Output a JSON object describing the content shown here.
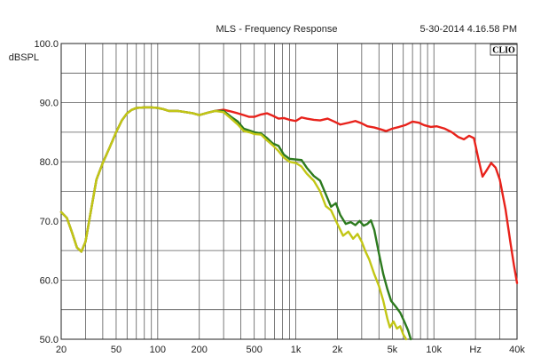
{
  "header": {
    "title": "MLS - Frequency Response",
    "timestamp": "5-30-2014 4.16.58 PM",
    "badge": "CLIO"
  },
  "chart_data": {
    "type": "line",
    "title": "MLS - Frequency Response",
    "ylabel": "dBSPL",
    "xlabel": "Hz",
    "xscale": "log",
    "xlim": [
      20,
      40000
    ],
    "ylim": [
      50,
      100
    ],
    "grid": true,
    "legend": "none",
    "x_tick_labels": [
      {
        "value": 20,
        "label": "20"
      },
      {
        "value": 50,
        "label": "50"
      },
      {
        "value": 100,
        "label": "100"
      },
      {
        "value": 200,
        "label": "200"
      },
      {
        "value": 500,
        "label": "500"
      },
      {
        "value": 1000,
        "label": "1k"
      },
      {
        "value": 2000,
        "label": "2k"
      },
      {
        "value": 5000,
        "label": "5k"
      },
      {
        "value": 10000,
        "label": "10k"
      },
      {
        "value": 20000,
        "label": "Hz"
      },
      {
        "value": 40000,
        "label": "40k"
      }
    ],
    "y_tick_labels": [
      {
        "value": 100,
        "label": "100.0"
      },
      {
        "value": 90,
        "label": "90.0"
      },
      {
        "value": 80,
        "label": "80.0"
      },
      {
        "value": 70,
        "label": "70.0"
      },
      {
        "value": 60,
        "label": "60.0"
      },
      {
        "value": 50,
        "label": "50.0"
      }
    ],
    "series": [
      {
        "color": "#e8221b",
        "points": [
          [
            20,
            71.5
          ],
          [
            22,
            70.5
          ],
          [
            24,
            68
          ],
          [
            26,
            65.5
          ],
          [
            28,
            64.8
          ],
          [
            30,
            66.5
          ],
          [
            33,
            72
          ],
          [
            36,
            77
          ],
          [
            40,
            79.8
          ],
          [
            45,
            82.5
          ],
          [
            50,
            85
          ],
          [
            55,
            87
          ],
          [
            60,
            88.2
          ],
          [
            65,
            88.8
          ],
          [
            70,
            89.1
          ],
          [
            80,
            89.2
          ],
          [
            90,
            89.2
          ],
          [
            100,
            89.1
          ],
          [
            110,
            88.9
          ],
          [
            120,
            88.6
          ],
          [
            140,
            88.6
          ],
          [
            160,
            88.4
          ],
          [
            180,
            88.2
          ],
          [
            200,
            87.9
          ],
          [
            230,
            88.3
          ],
          [
            260,
            88.6
          ],
          [
            300,
            88.8
          ],
          [
            340,
            88.5
          ],
          [
            380,
            88.2
          ],
          [
            420,
            87.9
          ],
          [
            460,
            87.6
          ],
          [
            500,
            87.6
          ],
          [
            560,
            88.0
          ],
          [
            620,
            88.2
          ],
          [
            680,
            87.8
          ],
          [
            750,
            87.3
          ],
          [
            820,
            87.4
          ],
          [
            900,
            87.1
          ],
          [
            1000,
            86.9
          ],
          [
            1100,
            87.5
          ],
          [
            1200,
            87.3
          ],
          [
            1350,
            87.1
          ],
          [
            1500,
            87.0
          ],
          [
            1700,
            87.3
          ],
          [
            1900,
            86.8
          ],
          [
            2100,
            86.3
          ],
          [
            2400,
            86.6
          ],
          [
            2700,
            86.9
          ],
          [
            3000,
            86.5
          ],
          [
            3300,
            86.0
          ],
          [
            3700,
            85.8
          ],
          [
            4100,
            85.5
          ],
          [
            4500,
            85.2
          ],
          [
            5000,
            85.6
          ],
          [
            5600,
            85.9
          ],
          [
            6200,
            86.2
          ],
          [
            7000,
            86.8
          ],
          [
            7800,
            86.6
          ],
          [
            8500,
            86.2
          ],
          [
            9500,
            85.9
          ],
          [
            10500,
            86.0
          ],
          [
            12000,
            85.6
          ],
          [
            13500,
            85.0
          ],
          [
            15000,
            84.2
          ],
          [
            16500,
            83.8
          ],
          [
            18000,
            84.4
          ],
          [
            19500,
            84.0
          ],
          [
            21000,
            80.5
          ],
          [
            22500,
            77.5
          ],
          [
            24000,
            78.5
          ],
          [
            26000,
            79.8
          ],
          [
            28000,
            79.0
          ],
          [
            30000,
            77.0
          ],
          [
            33000,
            72.0
          ],
          [
            36000,
            66.0
          ],
          [
            38000,
            62.5
          ],
          [
            40000,
            59.5
          ]
        ]
      },
      {
        "color": "#2c7a1e",
        "points": [
          [
            20,
            71.5
          ],
          [
            22,
            70.5
          ],
          [
            24,
            68
          ],
          [
            26,
            65.5
          ],
          [
            28,
            64.8
          ],
          [
            30,
            66.5
          ],
          [
            33,
            72
          ],
          [
            36,
            77
          ],
          [
            40,
            79.8
          ],
          [
            45,
            82.5
          ],
          [
            50,
            85
          ],
          [
            55,
            87
          ],
          [
            60,
            88.2
          ],
          [
            65,
            88.8
          ],
          [
            70,
            89.1
          ],
          [
            80,
            89.2
          ],
          [
            90,
            89.2
          ],
          [
            100,
            89.1
          ],
          [
            110,
            88.9
          ],
          [
            120,
            88.6
          ],
          [
            140,
            88.6
          ],
          [
            160,
            88.4
          ],
          [
            180,
            88.2
          ],
          [
            200,
            87.9
          ],
          [
            230,
            88.3
          ],
          [
            260,
            88.6
          ],
          [
            300,
            88.6
          ],
          [
            340,
            87.6
          ],
          [
            380,
            86.8
          ],
          [
            420,
            85.6
          ],
          [
            460,
            85.3
          ],
          [
            500,
            85.0
          ],
          [
            560,
            84.8
          ],
          [
            620,
            84.0
          ],
          [
            680,
            83.1
          ],
          [
            750,
            82.7
          ],
          [
            820,
            81.2
          ],
          [
            900,
            80.5
          ],
          [
            1000,
            80.4
          ],
          [
            1100,
            80.3
          ],
          [
            1200,
            79.0
          ],
          [
            1350,
            77.6
          ],
          [
            1500,
            76.8
          ],
          [
            1650,
            74.5
          ],
          [
            1800,
            72.4
          ],
          [
            1950,
            73.0
          ],
          [
            2100,
            71.0
          ],
          [
            2300,
            69.5
          ],
          [
            2500,
            69.8
          ],
          [
            2700,
            69.3
          ],
          [
            2900,
            70.0
          ],
          [
            3100,
            69.2
          ],
          [
            3300,
            69.5
          ],
          [
            3500,
            70.1
          ],
          [
            3700,
            68.5
          ],
          [
            4000,
            64.5
          ],
          [
            4300,
            61.0
          ],
          [
            4600,
            58.5
          ],
          [
            4900,
            56.5
          ],
          [
            5300,
            55.5
          ],
          [
            5700,
            54.5
          ],
          [
            6100,
            53.0
          ],
          [
            6500,
            51.5
          ],
          [
            6800,
            50.0
          ]
        ]
      },
      {
        "color": "#c2c615",
        "points": [
          [
            20,
            71.5
          ],
          [
            22,
            70.5
          ],
          [
            24,
            68
          ],
          [
            26,
            65.5
          ],
          [
            28,
            64.8
          ],
          [
            30,
            66.5
          ],
          [
            33,
            72
          ],
          [
            36,
            77
          ],
          [
            40,
            79.8
          ],
          [
            45,
            82.5
          ],
          [
            50,
            85
          ],
          [
            55,
            87
          ],
          [
            60,
            88.2
          ],
          [
            65,
            88.8
          ],
          [
            70,
            89.1
          ],
          [
            80,
            89.2
          ],
          [
            90,
            89.2
          ],
          [
            100,
            89.1
          ],
          [
            110,
            88.9
          ],
          [
            120,
            88.6
          ],
          [
            140,
            88.6
          ],
          [
            160,
            88.4
          ],
          [
            180,
            88.2
          ],
          [
            200,
            87.9
          ],
          [
            230,
            88.3
          ],
          [
            260,
            88.6
          ],
          [
            300,
            88.4
          ],
          [
            340,
            87.3
          ],
          [
            380,
            86.3
          ],
          [
            420,
            85.2
          ],
          [
            460,
            85.0
          ],
          [
            500,
            84.7
          ],
          [
            560,
            84.6
          ],
          [
            620,
            83.6
          ],
          [
            680,
            82.8
          ],
          [
            750,
            81.8
          ],
          [
            820,
            80.7
          ],
          [
            900,
            80.0
          ],
          [
            1000,
            79.8
          ],
          [
            1100,
            79.2
          ],
          [
            1200,
            78.0
          ],
          [
            1350,
            76.8
          ],
          [
            1500,
            75.0
          ],
          [
            1650,
            72.5
          ],
          [
            1800,
            71.8
          ],
          [
            2000,
            69.5
          ],
          [
            2200,
            67.5
          ],
          [
            2400,
            68.2
          ],
          [
            2600,
            67.0
          ],
          [
            2800,
            67.8
          ],
          [
            3000,
            66.5
          ],
          [
            3200,
            64.8
          ],
          [
            3400,
            63.5
          ],
          [
            3700,
            61.0
          ],
          [
            4000,
            59.0
          ],
          [
            4300,
            56.5
          ],
          [
            4600,
            53.5
          ],
          [
            4800,
            52.0
          ],
          [
            5100,
            53.0
          ],
          [
            5400,
            51.8
          ],
          [
            5700,
            52.2
          ],
          [
            6000,
            50.8
          ],
          [
            6300,
            50.0
          ]
        ]
      }
    ]
  }
}
